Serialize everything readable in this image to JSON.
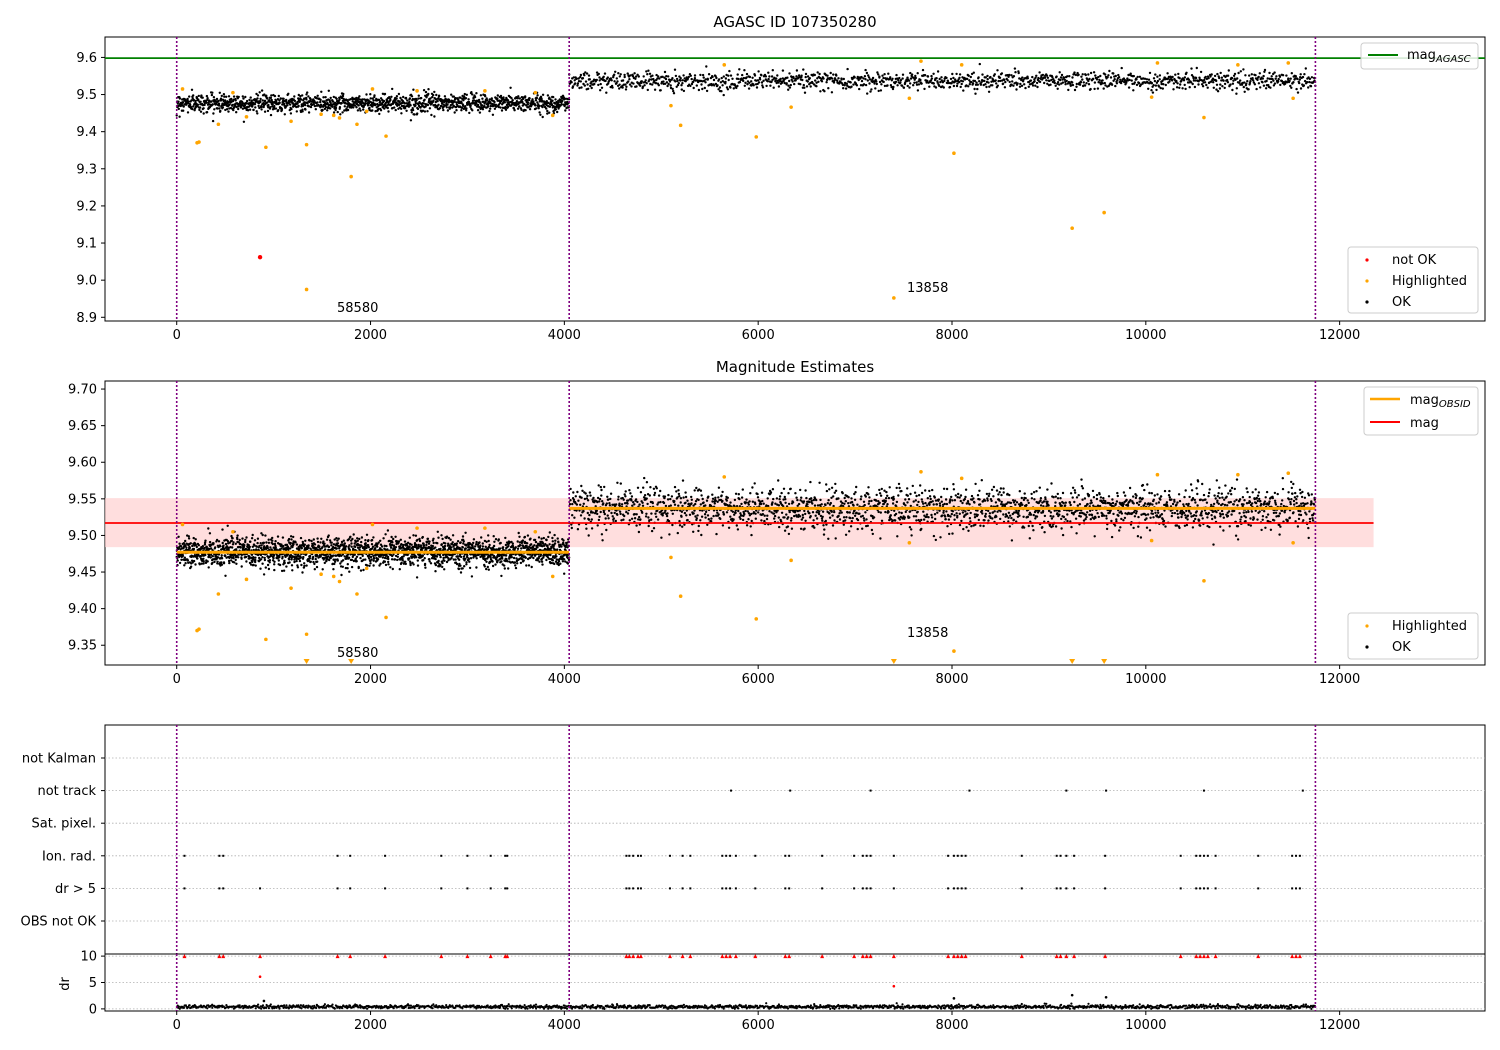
{
  "colors": {
    "ok": "#000000",
    "highlighted": "#ffa500",
    "not_ok": "#ff0000",
    "mag_line": "#ff0000",
    "mag_band": "#ffcccc",
    "agasc_line": "#008000",
    "obs_boundary": "#800080"
  },
  "chart_data": [
    {
      "type": "scatter",
      "title": "AGASC ID 107350280",
      "xlim": [
        -740,
        13500
      ],
      "ylim": [
        8.89,
        9.655
      ],
      "x_ticks": [
        "0",
        "2000",
        "4000",
        "6000",
        "8000",
        "10000",
        "12000"
      ],
      "y_ticks": [
        "8.9",
        "9.0",
        "9.1",
        "9.2",
        "9.3",
        "9.4",
        "9.5",
        "9.6"
      ],
      "obs_boundaries": [
        0,
        4050,
        11750
      ],
      "obsids": [
        {
          "label": "58580",
          "x_range": [
            0,
            4050
          ],
          "mean": 9.477
        },
        {
          "label": "13858",
          "x_range": [
            4050,
            11750
          ],
          "mean": 9.537
        }
      ],
      "mag_agasc": 9.598,
      "legends": {
        "line": [
          "mag",
          "AGASC"
        ],
        "points": [
          "not OK",
          "Highlighted",
          "OK"
        ]
      },
      "series": [
        {
          "name": "OK",
          "color": "#000000",
          "scatter_sd": 0.012
        },
        {
          "name": "Highlighted",
          "color": "#ffa500",
          "points": [
            [
              60,
              9.515
            ],
            [
              210,
              9.37
            ],
            [
              230,
              9.372
            ],
            [
              430,
              9.42
            ],
            [
              580,
              9.505
            ],
            [
              720,
              9.44
            ],
            [
              920,
              9.358
            ],
            [
              1180,
              9.428
            ],
            [
              1340,
              9.365
            ],
            [
              1490,
              9.447
            ],
            [
              1620,
              9.444
            ],
            [
              1680,
              9.437
            ],
            [
              1800,
              9.279
            ],
            [
              1860,
              9.42
            ],
            [
              1960,
              9.455
            ],
            [
              2020,
              9.515
            ],
            [
              2160,
              9.388
            ],
            [
              2480,
              9.51
            ],
            [
              3180,
              9.51
            ],
            [
              3700,
              9.505
            ],
            [
              3880,
              9.444
            ],
            [
              1340,
              8.975
            ],
            [
              5100,
              9.47
            ],
            [
              5200,
              9.417
            ],
            [
              5650,
              9.58
            ],
            [
              5980,
              9.386
            ],
            [
              6340,
              9.466
            ],
            [
              7400,
              8.952
            ],
            [
              7560,
              9.49
            ],
            [
              7680,
              9.59
            ],
            [
              8020,
              9.342
            ],
            [
              8100,
              9.58
            ],
            [
              9240,
              9.14
            ],
            [
              9570,
              9.182
            ],
            [
              10060,
              9.493
            ],
            [
              10120,
              9.585
            ],
            [
              10600,
              9.438
            ],
            [
              10950,
              9.58
            ],
            [
              11470,
              9.585
            ],
            [
              11520,
              9.49
            ]
          ]
        },
        {
          "name": "not OK",
          "color": "#ff0000",
          "points": [
            [
              860,
              9.062
            ]
          ]
        }
      ]
    },
    {
      "type": "scatter",
      "title": "Magnitude Estimates",
      "xlim": [
        -740,
        13500
      ],
      "ylim": [
        9.323,
        9.711
      ],
      "x_ticks": [
        "0",
        "2000",
        "4000",
        "6000",
        "8000",
        "10000",
        "12000"
      ],
      "y_ticks": [
        "9.35",
        "9.40",
        "9.45",
        "9.50",
        "9.55",
        "9.60",
        "9.65",
        "9.70"
      ],
      "mag": 9.517,
      "mag_band": [
        9.484,
        9.551
      ],
      "obsid_labels": [
        "58580",
        "13858"
      ],
      "legends": {
        "line": [
          "mag",
          "OBSID",
          "mag"
        ],
        "points": [
          "Highlighted",
          "OK"
        ]
      },
      "series": [
        {
          "name": "OK",
          "color": "#000000",
          "scatter_sd_obs1": 0.01,
          "scatter_sd_obs2": 0.014
        },
        {
          "name": "Highlighted",
          "color": "#ffa500",
          "points": [
            [
              60,
              9.515
            ],
            [
              210,
              9.37
            ],
            [
              230,
              9.372
            ],
            [
              430,
              9.42
            ],
            [
              580,
              9.505
            ],
            [
              720,
              9.44
            ],
            [
              920,
              9.358
            ],
            [
              1180,
              9.428
            ],
            [
              1340,
              9.365
            ],
            [
              1490,
              9.447
            ],
            [
              1620,
              9.444
            ],
            [
              1680,
              9.437
            ],
            [
              1860,
              9.42
            ],
            [
              1960,
              9.455
            ],
            [
              2020,
              9.515
            ],
            [
              2160,
              9.388
            ],
            [
              2480,
              9.51
            ],
            [
              3180,
              9.51
            ],
            [
              3700,
              9.505
            ],
            [
              3880,
              9.444
            ],
            [
              5100,
              9.47
            ],
            [
              5200,
              9.417
            ],
            [
              5650,
              9.58
            ],
            [
              5980,
              9.386
            ],
            [
              6340,
              9.466
            ],
            [
              7560,
              9.49
            ],
            [
              7680,
              9.587
            ],
            [
              8020,
              9.342
            ],
            [
              8100,
              9.578
            ],
            [
              10060,
              9.493
            ],
            [
              10120,
              9.583
            ],
            [
              10600,
              9.438
            ],
            [
              10950,
              9.583
            ],
            [
              11470,
              9.585
            ],
            [
              11520,
              9.49
            ]
          ]
        },
        {
          "name": "out of range (below)",
          "color": "#ffa500",
          "x": [
            1340,
            1800,
            7400,
            9240,
            9570
          ]
        }
      ]
    },
    {
      "type": "scatter",
      "title": "",
      "xlim": [
        -740,
        13500
      ],
      "categories": [
        "not Kalman",
        "not track",
        "Sat. pixel.",
        "Ion. rad.",
        "dr > 5",
        "OBS not OK"
      ],
      "x_ticks": [
        "0",
        "2000",
        "4000",
        "6000",
        "8000",
        "10000",
        "12000"
      ],
      "flag_points": {
        "not Kalman": [],
        "not track": [
          5720,
          6330,
          7160,
          8180,
          9180,
          9590,
          10600,
          11620
        ],
        "Sat. pixel.": [],
        "Ion. rad.": [
          80,
          440,
          480,
          1660,
          1790,
          2150,
          2730,
          3000,
          3240,
          3390,
          3410,
          4640,
          4670,
          4710,
          4760,
          4790,
          5090,
          5220,
          5300,
          5630,
          5670,
          5710,
          5770,
          5970,
          6280,
          6320,
          6660,
          6990,
          7080,
          7120,
          7160,
          7400,
          7960,
          8020,
          8060,
          8100,
          8140,
          8720,
          9080,
          9120,
          9180,
          9260,
          9580,
          10360,
          10520,
          10560,
          10600,
          10640,
          10720,
          11160,
          11510,
          11550,
          11590
        ],
        "dr > 5": [
          80,
          440,
          480,
          860,
          1660,
          1790,
          2150,
          2730,
          3000,
          3240,
          3390,
          3410,
          4640,
          4670,
          4710,
          4760,
          4790,
          5090,
          5220,
          5300,
          5630,
          5670,
          5710,
          5770,
          5970,
          6280,
          6320,
          6660,
          6990,
          7080,
          7120,
          7160,
          7400,
          7960,
          8020,
          8060,
          8100,
          8140,
          8720,
          9080,
          9120,
          9180,
          9260,
          9580,
          10360,
          10520,
          10560,
          10600,
          10640,
          10720,
          11160,
          11510,
          11550,
          11590
        ],
        "OBS not OK": []
      }
    },
    {
      "type": "scatter",
      "title": "",
      "ylabel": "dr",
      "xlim": [
        -740,
        13500
      ],
      "ylim": [
        -0.4,
        10.4
      ],
      "x_ticks": [
        "0",
        "2000",
        "4000",
        "6000",
        "8000",
        "10000",
        "12000"
      ],
      "y_ticks": [
        "0",
        "5",
        "10"
      ],
      "series": [
        {
          "name": "dr",
          "color": "#000000",
          "baseline": 0.4,
          "outliers": [
            [
              860,
              6.1
            ],
            [
              900,
              1.5
            ],
            [
              8020,
              2.0
            ],
            [
              9240,
              2.6
            ],
            [
              9590,
              2.2
            ]
          ]
        },
        {
          "name": "dr > 5",
          "color": "#ff0000",
          "y": 10,
          "points": [
            [
              7400,
              4.3
            ]
          ]
        }
      ]
    }
  ]
}
